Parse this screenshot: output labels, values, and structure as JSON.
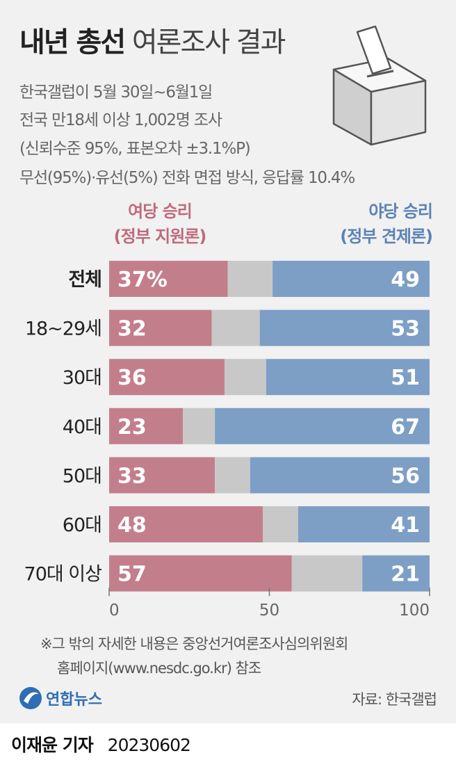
{
  "header": {
    "title_bold": "내년 총선",
    "title_light": "여론조사 결과",
    "meta_lines": [
      "한국갤럽이 5월 30일~6월1일",
      "전국 만18세 이상 1,002명 조사",
      "(신뢰수준 95%, 표본오차 ±3.1%P)",
      "무선(95%)·유선(5%) 전화 면접 방식, 응답률 10.4%"
    ]
  },
  "legend": {
    "ruling_line1": "여당 승리",
    "ruling_line2": "(정부 지원론)",
    "opposition_line1": "야당 승리",
    "opposition_line2": "(정부 견제론)"
  },
  "colors": {
    "ruling": "#c37e8c",
    "other": "#c8c8c8",
    "opposition": "#7d9fc6",
    "background": "#f1f1f1"
  },
  "chart_data": {
    "type": "bar",
    "orientation": "horizontal",
    "stacked": true,
    "categories": [
      "전체",
      "18~29세",
      "30대",
      "40대",
      "50대",
      "60대",
      "70대 이상"
    ],
    "series": [
      {
        "name": "여당 승리 (정부 지원론)",
        "values": [
          37,
          32,
          36,
          23,
          33,
          48,
          57
        ]
      },
      {
        "name": "",
        "values": [
          14,
          15,
          13,
          10,
          11,
          11,
          22
        ]
      },
      {
        "name": "야당 승리 (정부 견제론)",
        "values": [
          49,
          53,
          51,
          67,
          56,
          41,
          21
        ]
      }
    ],
    "value_labels_ruling": [
      "37%",
      "32",
      "36",
      "23",
      "33",
      "48",
      "57"
    ],
    "value_labels_opposition": [
      "49",
      "53",
      "51",
      "67",
      "56",
      "41",
      "21"
    ],
    "xlim": [
      0,
      100
    ],
    "xticks": [
      "0",
      "50",
      "100"
    ],
    "bold_category_index": 0
  },
  "footer": {
    "note_line1": "※그 밖의 자세한 내용은 중앙선거여론조사심의위원회",
    "note_line2": "홈페이지(www.nesdc.go.kr) 참조",
    "logo_text": "연합뉴스",
    "source": "자료: 한국갤럽",
    "reporter": "이재윤 기자",
    "date": "20230602"
  }
}
